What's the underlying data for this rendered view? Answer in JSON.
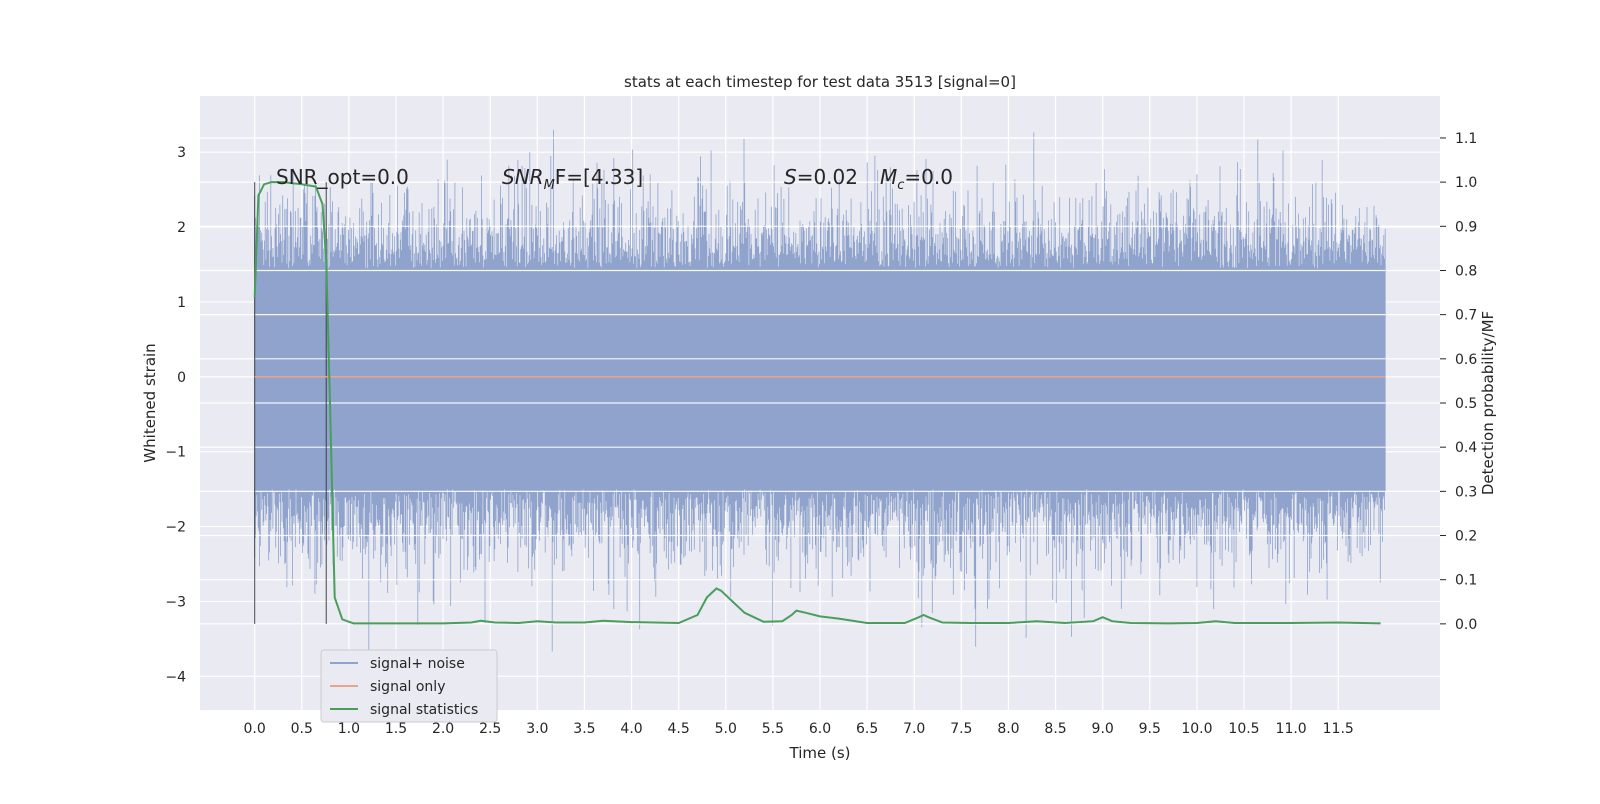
{
  "chart_data": {
    "type": "line",
    "title": "stats at each timestep for test data 3513 [signal=0]",
    "xlabel": "Time (s)",
    "ylabel": "Whitened strain",
    "y2label": "Detection probability/MF",
    "xlim": [
      -0.58,
      12.58
    ],
    "ylim": [
      -4.45,
      3.75
    ],
    "y2lim": [
      -0.195,
      1.195
    ],
    "x_ticks": [
      "0.0",
      "0.5",
      "1.0",
      "1.5",
      "2.0",
      "2.5",
      "3.0",
      "3.5",
      "4.0",
      "4.5",
      "5.0",
      "5.5",
      "6.0",
      "6.5",
      "7.0",
      "7.5",
      "8.0",
      "8.5",
      "9.0",
      "9.5",
      "10.0",
      "10.5",
      "11.0",
      "11.5"
    ],
    "y_ticks": [
      "3",
      "2",
      "1",
      "0",
      "−1",
      "−2",
      "−3",
      "−4"
    ],
    "y2_ticks": [
      "1.1",
      "1.0",
      "0.9",
      "0.8",
      "0.7",
      "0.6",
      "0.5",
      "0.4",
      "0.3",
      "0.2",
      "0.1",
      "0.0"
    ],
    "grid": true,
    "legend_position": "lower-left",
    "legend": [
      "signal+ noise",
      "signal only",
      "signal statistics"
    ],
    "annotations": {
      "snr_opt": "SNR_opt=0.0",
      "snr_mf_main": "SNR",
      "snr_mf_sub": "M",
      "snr_mf_rest": "F=[4.33]",
      "s_label": "S",
      "s_value": "=0.02",
      "mc_label": "M",
      "mc_sub": "c",
      "mc_value": "=0.0"
    },
    "vertical_markers": [
      0.0,
      0.76
    ],
    "series": [
      {
        "name": "signal+ noise",
        "axis": "left",
        "color": "#8fa3cc",
        "t_range": [
          0.0,
          12.0
        ],
        "description_range": [
          -4.0,
          3.3
        ]
      },
      {
        "name": "signal only",
        "axis": "left",
        "color": "#e8a58a",
        "x": [
          0.0,
          12.0
        ],
        "y": [
          0.0,
          0.0
        ]
      },
      {
        "name": "signal statistics",
        "axis": "right",
        "color": "#4a9e5c",
        "x": [
          0.0,
          0.04,
          0.1,
          0.18,
          0.3,
          0.5,
          0.65,
          0.72,
          0.76,
          0.8,
          0.85,
          0.93,
          1.05,
          1.3,
          2.0,
          2.3,
          2.4,
          2.55,
          2.8,
          3.0,
          3.2,
          3.5,
          3.7,
          4.0,
          4.5,
          4.7,
          4.8,
          4.9,
          4.95,
          5.05,
          5.2,
          5.4,
          5.6,
          5.7,
          5.75,
          5.85,
          6.0,
          6.2,
          6.5,
          6.9,
          7.05,
          7.1,
          7.15,
          7.3,
          7.6,
          8.0,
          8.3,
          8.6,
          8.9,
          9.0,
          9.1,
          9.3,
          9.7,
          10.0,
          10.2,
          10.4,
          11.0,
          11.5,
          11.95
        ],
        "y": [
          0.74,
          0.97,
          0.995,
          1.0,
          1.0,
          0.995,
          0.99,
          0.95,
          0.82,
          0.5,
          0.06,
          0.01,
          0.001,
          0.001,
          0.001,
          0.003,
          0.007,
          0.003,
          0.002,
          0.006,
          0.003,
          0.003,
          0.007,
          0.004,
          0.002,
          0.02,
          0.06,
          0.08,
          0.075,
          0.055,
          0.025,
          0.005,
          0.006,
          0.02,
          0.03,
          0.025,
          0.017,
          0.012,
          0.002,
          0.002,
          0.015,
          0.02,
          0.015,
          0.003,
          0.002,
          0.002,
          0.006,
          0.002,
          0.006,
          0.015,
          0.006,
          0.002,
          0.001,
          0.002,
          0.006,
          0.002,
          0.002,
          0.003,
          0.001
        ]
      }
    ]
  }
}
